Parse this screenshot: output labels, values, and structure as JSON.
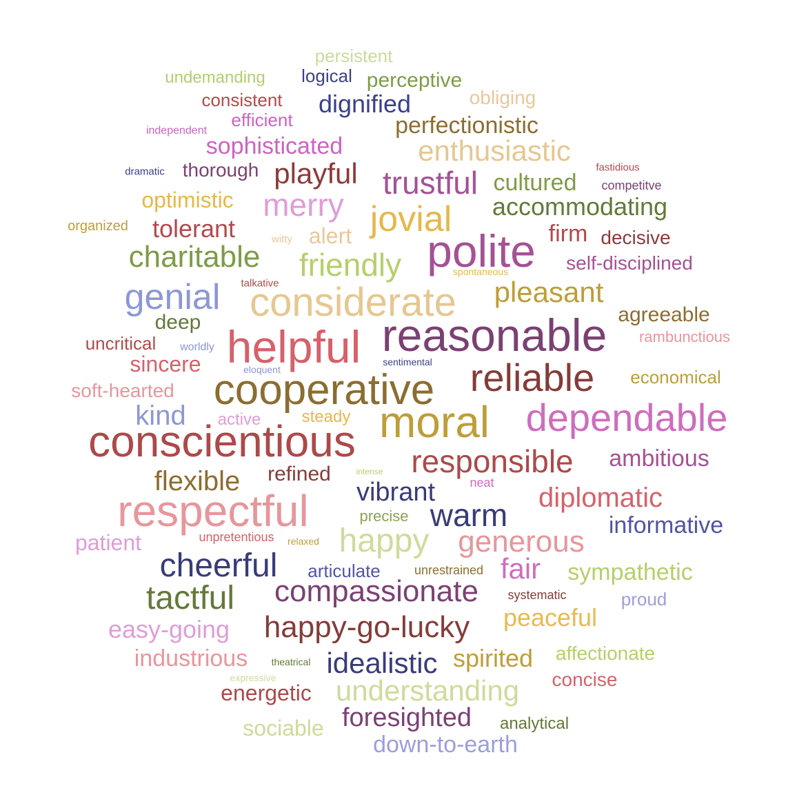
{
  "words": [
    {
      "text": "persistent",
      "color": "#c8dc9c"
    },
    {
      "text": "undemanding",
      "color": "#b3cf6b"
    },
    {
      "text": "logical",
      "color": "#3b3f8c"
    },
    {
      "text": "perceptive",
      "color": "#7e9b47"
    },
    {
      "text": "consistent",
      "color": "#b24a4d"
    },
    {
      "text": "obliging",
      "color": "#eac79a"
    },
    {
      "text": "dignified",
      "color": "#3b3f8c"
    },
    {
      "text": "efficient",
      "color": "#cd63bf"
    },
    {
      "text": "independent",
      "color": "#cd63bf"
    },
    {
      "text": "perfectionistic",
      "color": "#8c6d31"
    },
    {
      "text": "sophisticated",
      "color": "#cd63bf"
    },
    {
      "text": "enthusiastic",
      "color": "#e6c790"
    },
    {
      "text": "dramatic",
      "color": "#3b3f8c"
    },
    {
      "text": "thorough",
      "color": "#7b4173"
    },
    {
      "text": "playful",
      "color": "#8c3a3a"
    },
    {
      "text": "fastidious",
      "color": "#b24a4d"
    },
    {
      "text": "trustful",
      "color": "#a55194"
    },
    {
      "text": "cultured",
      "color": "#7e9b47"
    },
    {
      "text": "competitve",
      "color": "#7b4173"
    },
    {
      "text": "optimistic",
      "color": "#e6b84a"
    },
    {
      "text": "merry",
      "color": "#de9ed6"
    },
    {
      "text": "accommodating",
      "color": "#637939"
    },
    {
      "text": "organized",
      "color": "#bd9e39"
    },
    {
      "text": "tolerant",
      "color": "#b24a4d"
    },
    {
      "text": "jovial",
      "color": "#e6b84a"
    },
    {
      "text": "witty",
      "color": "#eac79a"
    },
    {
      "text": "alert",
      "color": "#eac79a"
    },
    {
      "text": "firm",
      "color": "#b24a4d"
    },
    {
      "text": "decisive",
      "color": "#8c3a3a"
    },
    {
      "text": "polite",
      "color": "#a55194"
    },
    {
      "text": "charitable",
      "color": "#7e9b47"
    },
    {
      "text": "friendly",
      "color": "#b5cf6b"
    },
    {
      "text": "self-disciplined",
      "color": "#a55194"
    },
    {
      "text": "spontaneous",
      "color": "#e6b84a"
    },
    {
      "text": "talkative",
      "color": "#b24a4d"
    },
    {
      "text": "genial",
      "color": "#8c97d6"
    },
    {
      "text": "considerate",
      "color": "#e6c790"
    },
    {
      "text": "pleasant",
      "color": "#bd9e39"
    },
    {
      "text": "deep",
      "color": "#637939"
    },
    {
      "text": "agreeable",
      "color": "#8c6d31"
    },
    {
      "text": "uncritical",
      "color": "#b24a4d"
    },
    {
      "text": "worldly",
      "color": "#8c97d6"
    },
    {
      "text": "helpful",
      "color": "#d6616b"
    },
    {
      "text": "reasonable",
      "color": "#7b4173"
    },
    {
      "text": "rambunctious",
      "color": "#e7969c"
    },
    {
      "text": "sincere",
      "color": "#d6616b"
    },
    {
      "text": "eloquent",
      "color": "#8c97d6"
    },
    {
      "text": "sentimental",
      "color": "#3b3f8c"
    },
    {
      "text": "reliable",
      "color": "#843c39"
    },
    {
      "text": "economical",
      "color": "#bd9e39"
    },
    {
      "text": "soft-hearted",
      "color": "#e7969c"
    },
    {
      "text": "cooperative",
      "color": "#8c6d31"
    },
    {
      "text": "kind",
      "color": "#8c97d6"
    },
    {
      "text": "active",
      "color": "#de9ed6"
    },
    {
      "text": "steady",
      "color": "#e6b84a"
    },
    {
      "text": "moral",
      "color": "#bd9e39"
    },
    {
      "text": "dependable",
      "color": "#ce6dbd"
    },
    {
      "text": "conscientious",
      "color": "#ad494a"
    },
    {
      "text": "responsible",
      "color": "#ad494a"
    },
    {
      "text": "ambitious",
      "color": "#a55194"
    },
    {
      "text": "flexible",
      "color": "#8c6d31"
    },
    {
      "text": "refined",
      "color": "#843c39"
    },
    {
      "text": "intense",
      "color": "#b5cf6b"
    },
    {
      "text": "neat",
      "color": "#ce6dbd"
    },
    {
      "text": "vibrant",
      "color": "#393b79"
    },
    {
      "text": "diplomatic",
      "color": "#d6616b"
    },
    {
      "text": "respectful",
      "color": "#e7969c"
    },
    {
      "text": "precise",
      "color": "#8ca252"
    },
    {
      "text": "warm",
      "color": "#393b79"
    },
    {
      "text": "informative",
      "color": "#5254a3"
    },
    {
      "text": "patient",
      "color": "#de9ed6"
    },
    {
      "text": "unpretentious",
      "color": "#d6616b"
    },
    {
      "text": "relaxed",
      "color": "#bd9e39"
    },
    {
      "text": "happy",
      "color": "#cedb9c"
    },
    {
      "text": "generous",
      "color": "#e7969c"
    },
    {
      "text": "cheerful",
      "color": "#393b79"
    },
    {
      "text": "articulate",
      "color": "#5254a3"
    },
    {
      "text": "unrestrained",
      "color": "#8c6d31"
    },
    {
      "text": "fair",
      "color": "#ce6dbd"
    },
    {
      "text": "sympathetic",
      "color": "#b5cf6b"
    },
    {
      "text": "tactful",
      "color": "#637939"
    },
    {
      "text": "compassionate",
      "color": "#7b4173"
    },
    {
      "text": "systematic",
      "color": "#843c39"
    },
    {
      "text": "proud",
      "color": "#9c9ede"
    },
    {
      "text": "peaceful",
      "color": "#e7ba52"
    },
    {
      "text": "easy-going",
      "color": "#de9ed6"
    },
    {
      "text": "happy-go-lucky",
      "color": "#843c39"
    },
    {
      "text": "industrious",
      "color": "#e7969c"
    },
    {
      "text": "theatrical",
      "color": "#637939"
    },
    {
      "text": "idealistic",
      "color": "#393b79"
    },
    {
      "text": "spirited",
      "color": "#bd9e39"
    },
    {
      "text": "affectionate",
      "color": "#b5cf6b"
    },
    {
      "text": "expressive",
      "color": "#cedb9c"
    },
    {
      "text": "concise",
      "color": "#d6616b"
    },
    {
      "text": "energetic",
      "color": "#ad494a"
    },
    {
      "text": "understanding",
      "color": "#cedb9c"
    },
    {
      "text": "foresighted",
      "color": "#7b4173"
    },
    {
      "text": "analytical",
      "color": "#637939"
    },
    {
      "text": "sociable",
      "color": "#cedb9c"
    },
    {
      "text": "down-to-earth",
      "color": "#9c9ede"
    }
  ]
}
